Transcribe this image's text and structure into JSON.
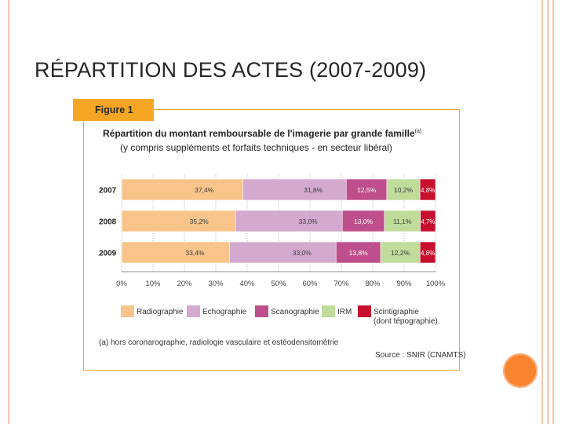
{
  "slide": {
    "title": "RÉPARTITION DES ACTES (2007-2009)"
  },
  "figure": {
    "tab_label": "Figure 1",
    "footnote": "(a) hors coronarographie, radiologie vasculaire et ostéodensitométrie",
    "source": "Source : SNIR (CNAMTS)"
  },
  "chart_data": {
    "type": "bar",
    "orientation": "horizontal",
    "stacked": "percent",
    "title": "Répartition du montant remboursable de l'imagerie par grande famille",
    "title_note": "(a)",
    "subtitle": "(y compris suppléments et forfaits techniques - en secteur libéral)",
    "categories": [
      "2007",
      "2008",
      "2009"
    ],
    "xlim": [
      0,
      100
    ],
    "xticks": [
      "0%",
      "10%",
      "20%",
      "30%",
      "40%",
      "50%",
      "60%",
      "70%",
      "80%",
      "90%",
      "100%"
    ],
    "series": [
      {
        "name": "Radiographie",
        "color": "#f9c48a",
        "values": [
          37.4,
          35.2,
          33.4
        ],
        "labels": [
          "37,4%",
          "35,2%",
          "33,4%"
        ]
      },
      {
        "name": "Echographie",
        "color": "#d3a9cf",
        "values": [
          31.8,
          33.0,
          33.0
        ],
        "labels": [
          "31,8%",
          "33,0%",
          "33,0%"
        ]
      },
      {
        "name": "Scanographie",
        "color": "#be4f8c",
        "values": [
          12.5,
          13.0,
          13.8
        ],
        "labels": [
          "12,5%",
          "13,0%",
          "13,8%"
        ]
      },
      {
        "name": "IRM",
        "color": "#bfdc9b",
        "values": [
          10.2,
          11.1,
          12.2
        ],
        "labels": [
          "10,2%",
          "11,1%",
          "12,2%"
        ]
      },
      {
        "name": "Scintigraphie",
        "name_line2": "(dont tépographie)",
        "color": "#c8102e",
        "values": [
          4.8,
          4.7,
          4.8
        ],
        "labels": [
          "4,8%",
          "4,7%",
          "4,8%"
        ]
      }
    ]
  }
}
